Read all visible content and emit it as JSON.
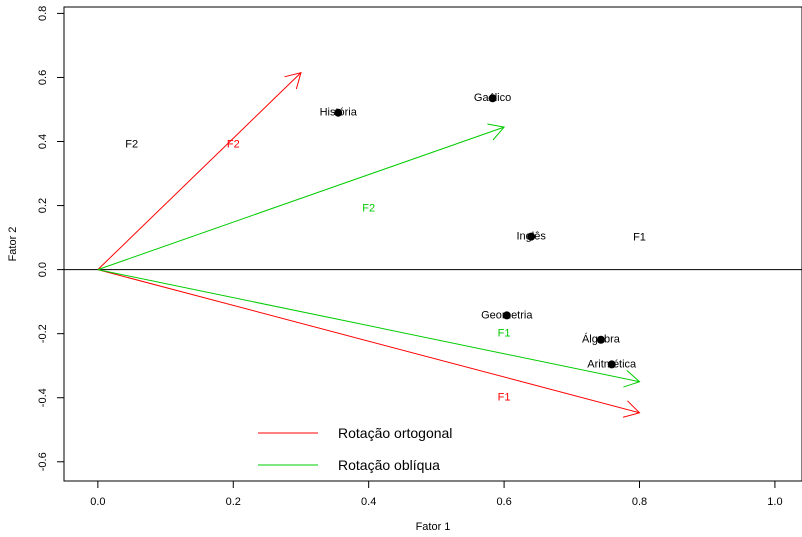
{
  "chart_data": {
    "type": "scatter",
    "xlabel": "Fator 1",
    "ylabel": "Fator 2",
    "xlim": [
      -0.05,
      1.04
    ],
    "ylim": [
      -0.66,
      0.82
    ],
    "xticks": [
      "0.0",
      "0.2",
      "0.4",
      "0.6",
      "0.8",
      "1.0"
    ],
    "yticks": [
      "-0.6",
      "-0.4",
      "-0.2",
      "0.0",
      "0.2",
      "0.4",
      "0.6",
      "0.8"
    ],
    "reference_line_y": 0,
    "points": [
      {
        "label": "Gaélico",
        "x": 0.583,
        "y": 0.535
      },
      {
        "label": "História",
        "x": 0.355,
        "y": 0.49
      },
      {
        "label": "Inglês",
        "x": 0.64,
        "y": 0.103
      },
      {
        "label": "Geometria",
        "x": 0.604,
        "y": -0.143
      },
      {
        "label": "Álgebra",
        "x": 0.743,
        "y": -0.219
      },
      {
        "label": "Aritmética",
        "x": 0.759,
        "y": -0.296
      }
    ],
    "axis_labels": [
      {
        "text": "F1",
        "x": 0.8,
        "y": 0.1,
        "color": "#000000"
      },
      {
        "text": "F2",
        "x": 0.05,
        "y": 0.39,
        "color": "#000000"
      }
    ],
    "series": [
      {
        "name": "Rotação ortogonal",
        "color": "#ff0000",
        "vectors": [
          {
            "label": "F1",
            "x": 0.8,
            "y": -0.447,
            "label_x": 0.6,
            "label_y": -0.4
          },
          {
            "label": "F2",
            "x": 0.3,
            "y": 0.615,
            "label_x": 0.2,
            "label_y": 0.39
          }
        ]
      },
      {
        "name": "Rotação oblíqua",
        "color": "#00cc00",
        "vectors": [
          {
            "label": "F1",
            "x": 0.8,
            "y": -0.35,
            "label_x": 0.6,
            "label_y": -0.2
          },
          {
            "label": "F2",
            "x": 0.6,
            "y": 0.445,
            "label_x": 0.4,
            "label_y": 0.19
          }
        ]
      }
    ],
    "legend": {
      "placement": "bottom-left",
      "entries": [
        "Rotação ortogonal",
        "Rotação oblíqua"
      ]
    }
  }
}
